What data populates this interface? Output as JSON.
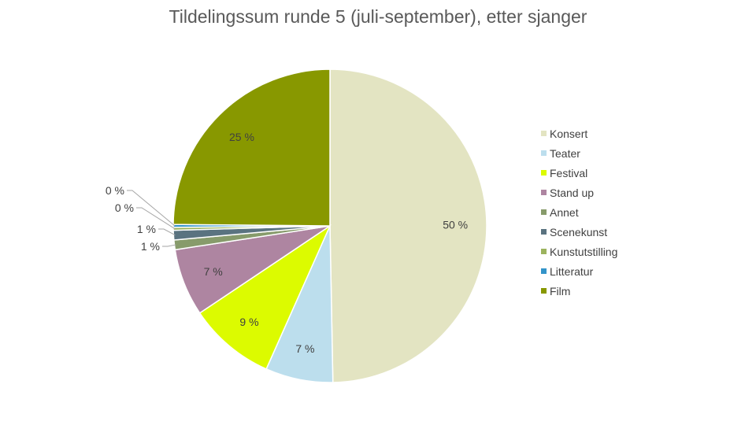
{
  "chart_data": {
    "type": "pie",
    "title": "Tildelingssum runde 5 (juli-september), etter sjanger",
    "categories": [
      "Konsert",
      "Teater",
      "Festival",
      "Stand up",
      "Annet",
      "Scenekunst",
      "Kunstutstilling",
      "Litteratur",
      "Film"
    ],
    "values": [
      50,
      7,
      9,
      7,
      1,
      1,
      0.3,
      0.3,
      25
    ],
    "labels": [
      "50 %",
      "7 %",
      "9 %",
      "7 %",
      "1 %",
      "1 %",
      "0 %",
      "0 %",
      "25 %"
    ],
    "colors": [
      "#e3e4c2",
      "#bcdeed",
      "#dcfb00",
      "#ae85a1",
      "#879b6b",
      "#5a7380",
      "#9cb35e",
      "#3394c9",
      "#889800"
    ],
    "legend_position": "right"
  }
}
